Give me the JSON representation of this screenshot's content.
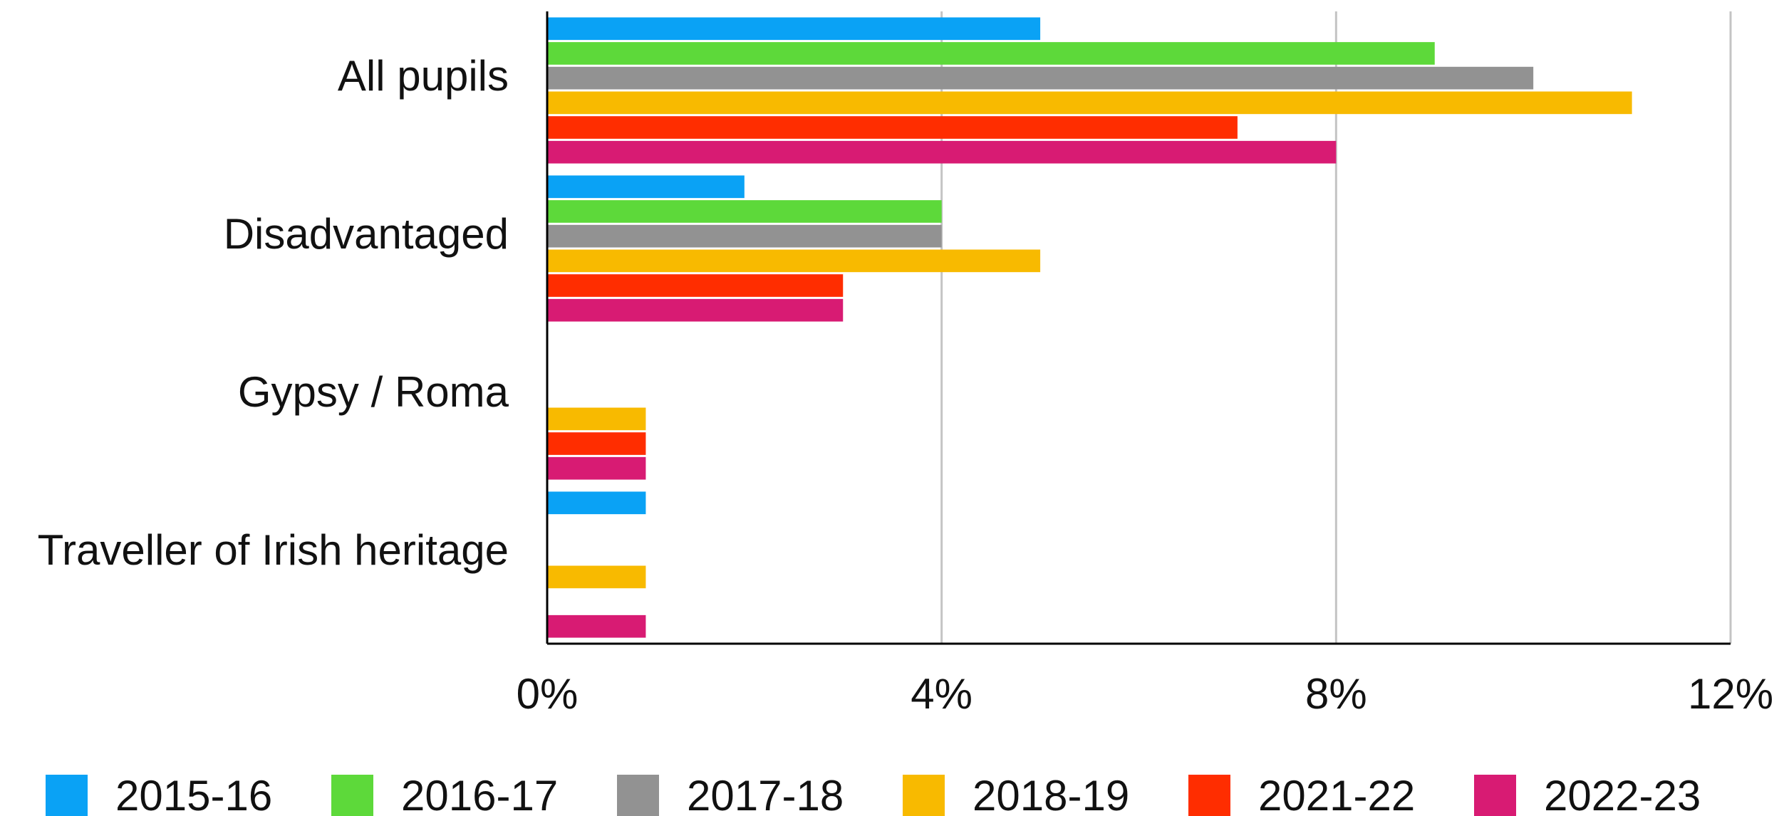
{
  "chart_data": {
    "type": "hbar",
    "categories": [
      "All pupils",
      "Disadvantaged",
      "Gypsy / Roma",
      "Traveller of Irish heritage"
    ],
    "series": [
      {
        "name": "2015-16",
        "color": "#0aa2f5",
        "values": [
          5,
          2,
          null,
          1
        ]
      },
      {
        "name": "2016-17",
        "color": "#5dd93a",
        "values": [
          9,
          4,
          null,
          null
        ]
      },
      {
        "name": "2017-18",
        "color": "#929292",
        "values": [
          10,
          4,
          null,
          null
        ]
      },
      {
        "name": "2018-19",
        "color": "#f8ba00",
        "values": [
          11,
          5,
          1,
          1
        ]
      },
      {
        "name": "2021-22",
        "color": "#ff2d00",
        "values": [
          7,
          3,
          1,
          null
        ]
      },
      {
        "name": "2022-23",
        "color": "#d81b73",
        "values": [
          8,
          3,
          1,
          1
        ]
      }
    ],
    "xlim": [
      0,
      12
    ],
    "xticks": [
      {
        "value": 0,
        "label": "0%"
      },
      {
        "value": 4,
        "label": "4%"
      },
      {
        "value": 8,
        "label": "8%"
      },
      {
        "value": 12,
        "label": "12%"
      }
    ],
    "grid": true,
    "legend": "bottom"
  }
}
